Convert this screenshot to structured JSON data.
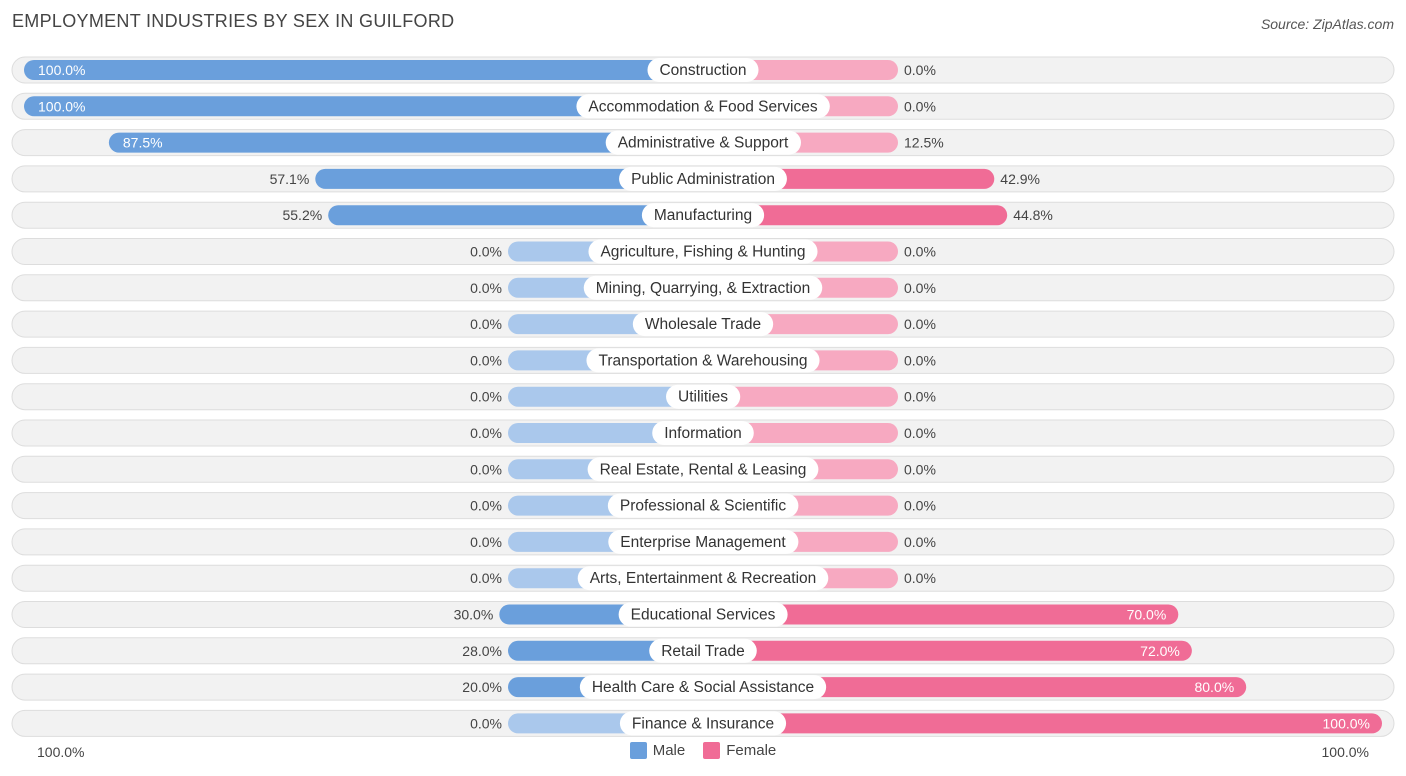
{
  "header": {
    "title": "EMPLOYMENT INDUSTRIES BY SEX IN GUILFORD",
    "source": "Source: ZipAtlas.com"
  },
  "colors": {
    "male_strong": "#6a9fdc",
    "male_light": "#aac8ec",
    "female_strong": "#f06c96",
    "female_light": "#f7a9c1",
    "row_bg": "#f2f2f2",
    "row_border": "#dddddd"
  },
  "chart_data": {
    "type": "bar",
    "orientation": "diverging-horizontal",
    "categories": [
      "Construction",
      "Accommodation & Food Services",
      "Administrative & Support",
      "Public Administration",
      "Manufacturing",
      "Agriculture, Fishing & Hunting",
      "Mining, Quarrying, & Extraction",
      "Wholesale Trade",
      "Transportation & Warehousing",
      "Utilities",
      "Information",
      "Real Estate, Rental & Leasing",
      "Professional & Scientific",
      "Enterprise Management",
      "Arts, Entertainment & Recreation",
      "Educational Services",
      "Retail Trade",
      "Health Care & Social Assistance",
      "Finance & Insurance"
    ],
    "series": [
      {
        "name": "Male",
        "values": [
          100.0,
          100.0,
          87.5,
          57.1,
          55.2,
          0.0,
          0.0,
          0.0,
          0.0,
          0.0,
          0.0,
          0.0,
          0.0,
          0.0,
          0.0,
          30.0,
          28.0,
          20.0,
          0.0
        ],
        "labels": [
          "100.0%",
          "100.0%",
          "87.5%",
          "57.1%",
          "55.2%",
          "0.0%",
          "0.0%",
          "0.0%",
          "0.0%",
          "0.0%",
          "0.0%",
          "0.0%",
          "0.0%",
          "0.0%",
          "0.0%",
          "30.0%",
          "28.0%",
          "20.0%",
          "0.0%"
        ]
      },
      {
        "name": "Female",
        "values": [
          0.0,
          0.0,
          12.5,
          42.9,
          44.8,
          0.0,
          0.0,
          0.0,
          0.0,
          0.0,
          0.0,
          0.0,
          0.0,
          0.0,
          0.0,
          70.0,
          72.0,
          80.0,
          100.0
        ],
        "labels": [
          "0.0%",
          "0.0%",
          "12.5%",
          "42.9%",
          "44.8%",
          "0.0%",
          "0.0%",
          "0.0%",
          "0.0%",
          "0.0%",
          "0.0%",
          "0.0%",
          "0.0%",
          "0.0%",
          "0.0%",
          "70.0%",
          "72.0%",
          "80.0%",
          "100.0%"
        ]
      }
    ],
    "xlim": [
      0,
      100
    ],
    "axis_left_label": "100.0%",
    "axis_right_label": "100.0%",
    "legend": [
      "Male",
      "Female"
    ],
    "legend_position": "bottom-center",
    "grid": false
  }
}
